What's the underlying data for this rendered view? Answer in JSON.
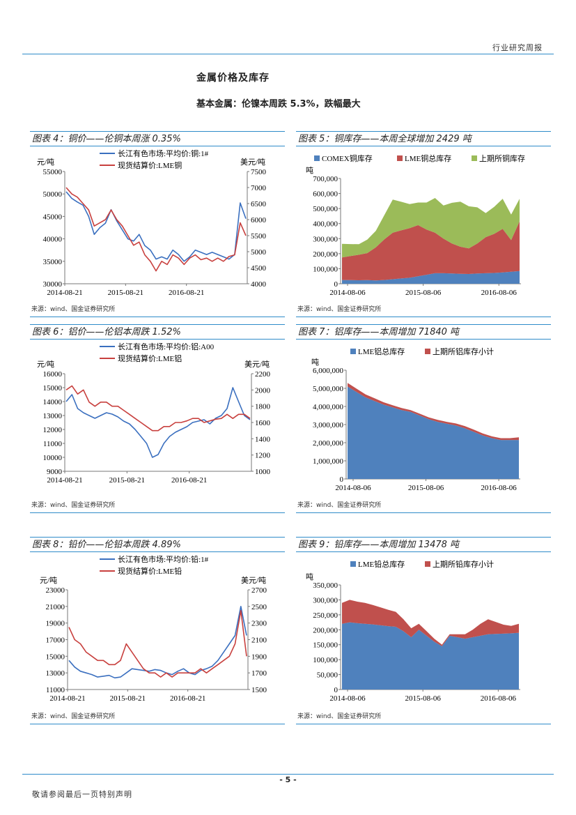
{
  "header": {
    "report_type": "行业研究周报"
  },
  "section": {
    "title": "金属价格及库存",
    "subtitle": "基本金属：伦镍本周跌 5.3%，跌幅最大"
  },
  "footer": {
    "page_number": "- 5 -",
    "disclaimer": "敬请参阅最后一页特别声明"
  },
  "source_text": "来源：wind、国金证券研究所",
  "colors": {
    "blue": "#3a6fbf",
    "red": "#c8403e",
    "green": "#9bbb59",
    "stack_blue": "#4f81bd",
    "stack_red": "#c0504d",
    "rule": "#2e8bc9"
  },
  "chart_data": [
    {
      "id": "fig4",
      "title": "图表 4：铜价——伦铜本周涨 0.35%",
      "type": "line",
      "legend": [
        "长江有色市场:平均价:铜:1#",
        "现货结算价:LME铜"
      ],
      "left_unit": "元/吨",
      "right_unit": "美元/吨",
      "left_ticks": [
        30000,
        35000,
        40000,
        45000,
        50000,
        55000
      ],
      "right_ticks": [
        4000,
        4500,
        5000,
        5500,
        6000,
        6500,
        7000,
        7500
      ],
      "x_ticks": [
        "2014-08-21",
        "2015-08-21",
        "2016-08-21"
      ],
      "ylim_left": [
        30000,
        55000
      ],
      "ylim_right": [
        4000,
        7500
      ],
      "series": [
        {
          "name": "长江有色市场:平均价:铜:1#",
          "axis": "left",
          "values": [
            50500,
            49000,
            48200,
            47500,
            45000,
            41000,
            42500,
            43500,
            46500,
            44000,
            42000,
            40000,
            39500,
            41000,
            38500,
            37500,
            35500,
            36000,
            35500,
            37500,
            36500,
            35000,
            36000,
            37500,
            37000,
            36500,
            37000,
            36500,
            36000,
            35500,
            36500,
            48000,
            44500
          ]
        },
        {
          "name": "现货结算价:LME铜",
          "axis": "right",
          "values": [
            7000,
            6800,
            6700,
            6500,
            6300,
            5800,
            5900,
            6000,
            6300,
            6000,
            5800,
            5500,
            5200,
            5300,
            4900,
            4700,
            4400,
            4700,
            4600,
            4900,
            4800,
            4600,
            4800,
            4900,
            4750,
            4800,
            4700,
            4800,
            4700,
            4850,
            4900,
            5900,
            5500
          ]
        }
      ]
    },
    {
      "id": "fig5",
      "title": "图表 5：铜库存——本周全球增加 2429 吨",
      "type": "area",
      "legend": [
        "COMEX铜库存",
        "LME铜总库存",
        "上期所铜库存"
      ],
      "left_unit": "吨",
      "left_ticks": [
        0,
        100000,
        200000,
        300000,
        400000,
        500000,
        600000,
        700000
      ],
      "left_tick_labels": [
        "0",
        "100,000",
        "200,000",
        "300,000",
        "400,000",
        "500,000",
        "600,000",
        "700,000"
      ],
      "x_ticks": [
        "2014-08-06",
        "2015-08-06",
        "2016-08-06"
      ],
      "ylim": [
        0,
        700000
      ],
      "series": [
        {
          "name": "COMEX铜库存",
          "values": [
            25000,
            24000,
            23000,
            24000,
            22000,
            25000,
            30000,
            35000,
            40000,
            50000,
            60000,
            70000,
            70000,
            68000,
            66000,
            65000,
            68000,
            70000,
            72000,
            75000,
            80000,
            85000
          ]
        },
        {
          "name": "LME铜总库存",
          "values": [
            150000,
            160000,
            170000,
            180000,
            220000,
            270000,
            310000,
            320000,
            330000,
            340000,
            300000,
            270000,
            230000,
            200000,
            180000,
            170000,
            200000,
            240000,
            260000,
            290000,
            210000,
            330000
          ]
        },
        {
          "name": "上期所铜库存",
          "values": [
            90000,
            80000,
            70000,
            90000,
            110000,
            160000,
            220000,
            190000,
            160000,
            150000,
            180000,
            230000,
            220000,
            270000,
            300000,
            280000,
            240000,
            160000,
            180000,
            200000,
            170000,
            150000
          ]
        }
      ]
    },
    {
      "id": "fig6",
      "title": "图表 6：铝价——伦铝本周跌 1.52%",
      "type": "line",
      "legend": [
        "长江有色市场:平均价:铝:A00",
        "现货结算价:LME铝"
      ],
      "left_unit": "元/吨",
      "right_unit": "美元/吨",
      "left_ticks": [
        9000,
        10000,
        11000,
        12000,
        13000,
        14000,
        15000,
        16000
      ],
      "right_ticks": [
        1000,
        1200,
        1400,
        1600,
        1800,
        2000,
        2200
      ],
      "x_ticks": [
        "2014-08-21",
        "2015-08-21",
        "2016-08-21"
      ],
      "ylim_left": [
        9000,
        16000
      ],
      "ylim_right": [
        1000,
        2200
      ],
      "series": [
        {
          "name": "长江有色市场:平均价:铝:A00",
          "axis": "left",
          "values": [
            14000,
            14500,
            13500,
            13200,
            13000,
            12800,
            13000,
            13200,
            13100,
            12900,
            12600,
            12400,
            12000,
            11500,
            11000,
            10000,
            10200,
            11000,
            11500,
            11800,
            12000,
            12200,
            12500,
            12600,
            12700,
            12400,
            12800,
            13000,
            13500,
            15000,
            14000,
            13000,
            12700
          ]
        },
        {
          "name": "现货结算价:LME铝",
          "axis": "right",
          "values": [
            2000,
            2050,
            1950,
            2000,
            1850,
            1800,
            1850,
            1850,
            1800,
            1800,
            1750,
            1700,
            1650,
            1600,
            1550,
            1500,
            1500,
            1550,
            1550,
            1600,
            1600,
            1620,
            1650,
            1650,
            1600,
            1620,
            1640,
            1650,
            1700,
            1650,
            1700,
            1700,
            1650
          ]
        }
      ]
    },
    {
      "id": "fig7",
      "title": "图表 7：铝库存——本周增加 71840 吨",
      "type": "area",
      "legend": [
        "LME铝总库存",
        "上期所铝库存小计"
      ],
      "left_unit": "吨",
      "left_ticks": [
        0,
        1000000,
        2000000,
        3000000,
        4000000,
        5000000,
        6000000
      ],
      "left_tick_labels": [
        "0",
        "1,000,000",
        "2,000,000",
        "3,000,000",
        "4,000,000",
        "5,000,000",
        "6,000,000"
      ],
      "x_ticks": [
        "2014-08-06",
        "2015-08-06",
        "2016-08-06"
      ],
      "ylim": [
        0,
        6000000
      ],
      "series": [
        {
          "name": "LME铝总库存",
          "values": [
            5100000,
            4800000,
            4500000,
            4300000,
            4100000,
            3950000,
            3800000,
            3700000,
            3500000,
            3300000,
            3150000,
            3050000,
            2950000,
            2800000,
            2600000,
            2400000,
            2250000,
            2150000,
            2150000,
            2150000
          ]
        },
        {
          "name": "上期所铝库存小计",
          "values": [
            200000,
            180000,
            160000,
            150000,
            130000,
            120000,
            110000,
            100000,
            100000,
            100000,
            110000,
            100000,
            110000,
            120000,
            120000,
            110000,
            100000,
            100000,
            100000,
            150000
          ]
        }
      ]
    },
    {
      "id": "fig8",
      "title": "图表 8：铅价——伦铅本周跌 4.89%",
      "type": "line",
      "legend": [
        "长江有色市场:平均价:铅:1#",
        "现货结算价:LME铅"
      ],
      "left_unit": "元/吨",
      "right_unit": "美元/吨",
      "left_ticks": [
        11000,
        13000,
        15000,
        17000,
        19000,
        21000,
        23000
      ],
      "right_ticks": [
        1500,
        1700,
        1900,
        2100,
        2300,
        2500,
        2700
      ],
      "x_ticks": [
        "2014-08-21",
        "2015-08-21",
        "2016-08-21"
      ],
      "ylim_left": [
        11000,
        23000
      ],
      "ylim_right": [
        1500,
        2700
      ],
      "series": [
        {
          "name": "长江有色市场:平均价:铅:1#",
          "axis": "left",
          "values": [
            14500,
            13700,
            13200,
            13000,
            12800,
            12500,
            12600,
            12700,
            12400,
            12500,
            13000,
            13500,
            13400,
            13300,
            13200,
            13400,
            13300,
            13000,
            12800,
            13200,
            13500,
            13000,
            12800,
            13300,
            13500,
            13800,
            14500,
            15500,
            16500,
            17500,
            21000,
            17500
          ]
        },
        {
          "name": "现货结算价:LME铅",
          "axis": "right",
          "values": [
            2250,
            2100,
            2050,
            1950,
            1900,
            1850,
            1850,
            1800,
            1800,
            1850,
            2050,
            1950,
            1850,
            1750,
            1700,
            1700,
            1650,
            1700,
            1650,
            1700,
            1700,
            1700,
            1700,
            1750,
            1700,
            1750,
            1800,
            1850,
            1900,
            2050,
            2450,
            1900
          ]
        }
      ]
    },
    {
      "id": "fig9",
      "title": "图表 9：铅库存——本周增加 13478 吨",
      "type": "area",
      "legend": [
        "LME铅总库存",
        "上期所铅库存小计"
      ],
      "left_unit": "吨",
      "left_ticks": [
        0,
        50000,
        100000,
        150000,
        200000,
        250000,
        300000,
        350000
      ],
      "left_tick_labels": [
        "0",
        "50,000",
        "100,000",
        "150,000",
        "200,000",
        "250,000",
        "300,000",
        "350,000"
      ],
      "x_ticks": [
        "2014-08-06",
        "2015-08-06",
        "2016-08-06"
      ],
      "ylim": [
        0,
        350000
      ],
      "series": [
        {
          "name": "LME铅总库存",
          "values": [
            220000,
            225000,
            222000,
            220000,
            218000,
            215000,
            212000,
            210000,
            195000,
            175000,
            200000,
            180000,
            160000,
            145000,
            180000,
            175000,
            170000,
            175000,
            180000,
            185000,
            186000,
            187000,
            188000,
            190000
          ]
        },
        {
          "name": "上期所铅库存小计",
          "values": [
            70000,
            75000,
            72000,
            70000,
            65000,
            60000,
            55000,
            50000,
            40000,
            30000,
            20000,
            15000,
            10000,
            5000,
            5000,
            10000,
            15000,
            25000,
            40000,
            50000,
            40000,
            30000,
            25000,
            30000
          ]
        }
      ]
    }
  ]
}
